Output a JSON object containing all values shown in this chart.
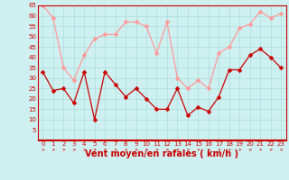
{
  "xlabel": "Vent moyen/en rafales ( km/h )",
  "x": [
    0,
    1,
    2,
    3,
    4,
    5,
    6,
    7,
    8,
    9,
    10,
    11,
    12,
    13,
    14,
    15,
    16,
    17,
    18,
    19,
    20,
    21,
    22,
    23
  ],
  "wind_avg": [
    33,
    24,
    25,
    18,
    33,
    10,
    33,
    27,
    21,
    25,
    20,
    15,
    15,
    25,
    12,
    16,
    14,
    21,
    34,
    34,
    41,
    44,
    40,
    35
  ],
  "wind_gust": [
    65,
    59,
    35,
    29,
    41,
    49,
    51,
    51,
    57,
    57,
    55,
    42,
    57,
    30,
    25,
    29,
    25,
    42,
    45,
    54,
    56,
    62,
    59,
    61
  ],
  "ylim": [
    0,
    65
  ],
  "yticks": [
    5,
    10,
    15,
    20,
    25,
    30,
    35,
    40,
    45,
    50,
    55,
    60,
    65
  ],
  "bg_color": "#cff0f0",
  "grid_color": "#aadddd",
  "line_color_avg": "#cc0000",
  "line_color_gust": "#ff9999",
  "spine_color": "#cc0000",
  "xlabel_fontsize": 7,
  "tick_fontsize": 5,
  "marker_size": 2.5,
  "linewidth": 0.9
}
